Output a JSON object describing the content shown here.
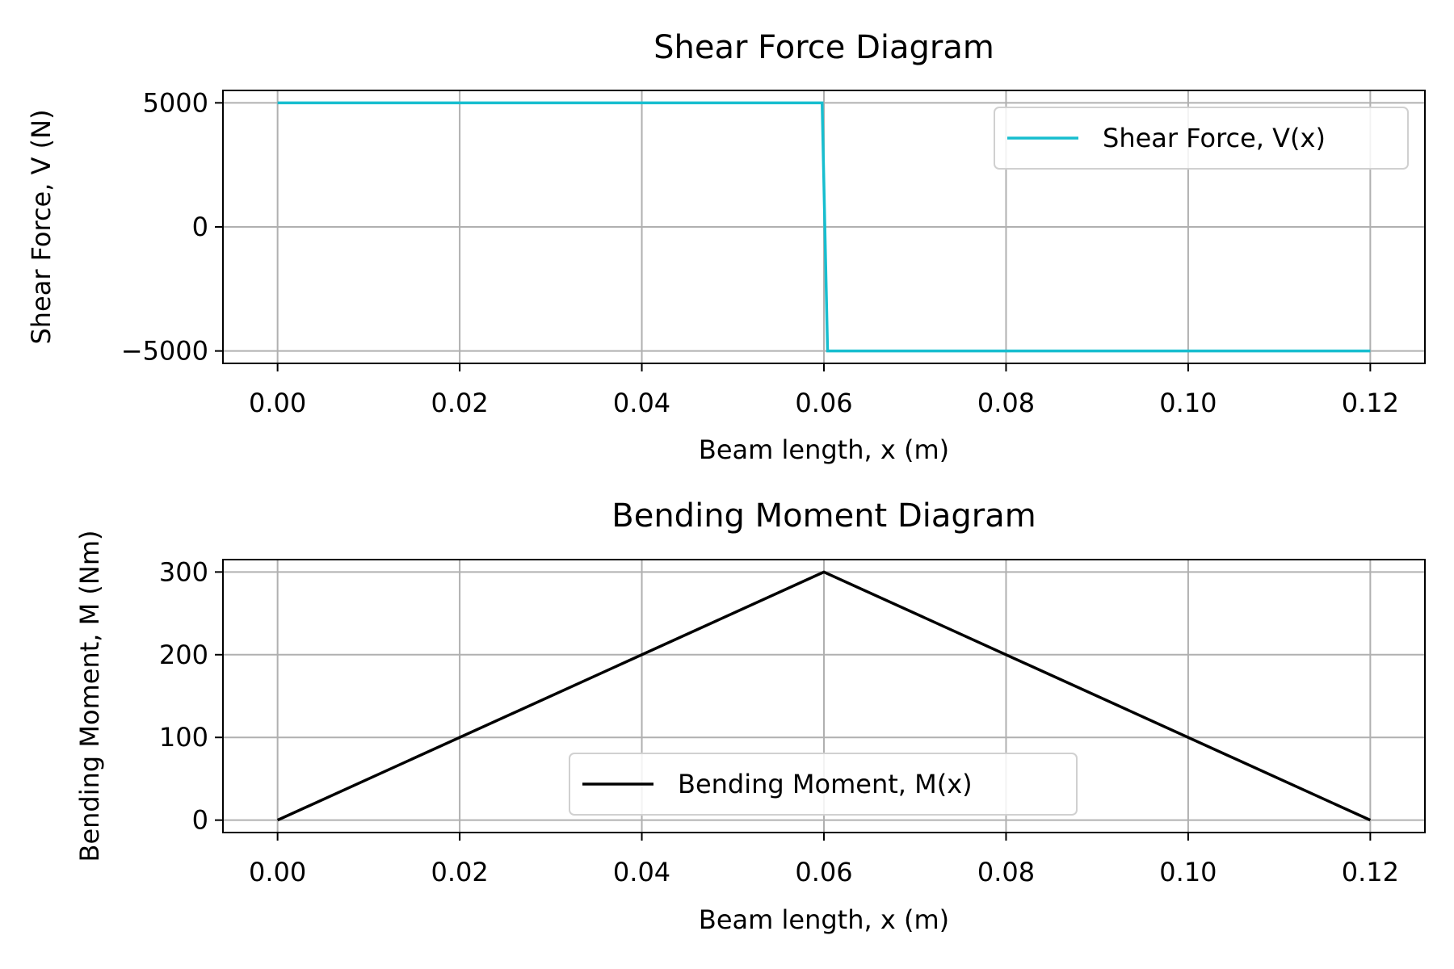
{
  "chart_data": [
    {
      "type": "line",
      "title": "Shear Force Diagram",
      "xlabel": "Beam length, x (m)",
      "ylabel": "Shear Force, V (N)",
      "xlim": [
        -0.006,
        0.126
      ],
      "ylim": [
        -5500,
        5500
      ],
      "xticks": [
        0.0,
        0.02,
        0.04,
        0.06,
        0.08,
        0.1,
        0.12
      ],
      "xtick_labels": [
        "0.00",
        "0.02",
        "0.04",
        "0.06",
        "0.08",
        "0.10",
        "0.12"
      ],
      "yticks": [
        5000,
        0,
        -5000
      ],
      "ytick_labels": [
        "5000",
        "0",
        "−5000"
      ],
      "grid": true,
      "legend_position": "upper right",
      "series": [
        {
          "name": "Shear Force, V(x)",
          "color": "#17becf",
          "x": [
            0.0,
            0.0598,
            0.0604,
            0.12
          ],
          "y": [
            5000,
            5000,
            -5000,
            -5000
          ]
        }
      ]
    },
    {
      "type": "line",
      "title": "Bending Moment Diagram",
      "xlabel": "Beam length, x (m)",
      "ylabel": "Bending Moment, M (Nm)",
      "xlim": [
        -0.006,
        0.126
      ],
      "ylim": [
        -15,
        315
      ],
      "xticks": [
        0.0,
        0.02,
        0.04,
        0.06,
        0.08,
        0.1,
        0.12
      ],
      "xtick_labels": [
        "0.00",
        "0.02",
        "0.04",
        "0.06",
        "0.08",
        "0.10",
        "0.12"
      ],
      "yticks": [
        300,
        200,
        100,
        0
      ],
      "ytick_labels": [
        "300",
        "200",
        "100",
        "0"
      ],
      "grid": true,
      "legend_position": "lower center",
      "series": [
        {
          "name": "Bending Moment, M(x)",
          "color": "#000000",
          "x": [
            0.0,
            0.06,
            0.12
          ],
          "y": [
            0,
            300,
            0
          ]
        }
      ]
    }
  ]
}
